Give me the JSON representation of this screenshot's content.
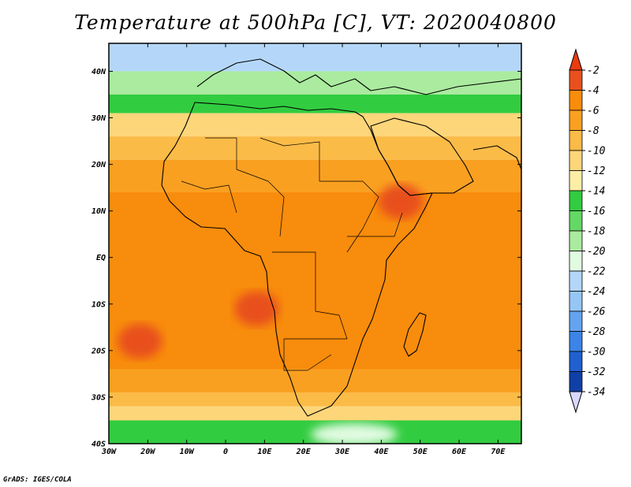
{
  "title": "Temperature at 500hPa [C], VT: 2020040800",
  "credit": "GrADS: IGES/COLA",
  "map": {
    "lon_range": [
      -30,
      76
    ],
    "lat_range": [
      -40,
      46
    ],
    "lat_ticks": [
      {
        "value": 40,
        "label": "40N"
      },
      {
        "value": 30,
        "label": "30N"
      },
      {
        "value": 20,
        "label": "20N"
      },
      {
        "value": 10,
        "label": "10N"
      },
      {
        "value": 0,
        "label": "EQ"
      },
      {
        "value": -10,
        "label": "10S"
      },
      {
        "value": -20,
        "label": "20S"
      },
      {
        "value": -30,
        "label": "30S"
      },
      {
        "value": -40,
        "label": "40S"
      }
    ],
    "lon_ticks": [
      {
        "value": -30,
        "label": "30W"
      },
      {
        "value": -20,
        "label": "20W"
      },
      {
        "value": -10,
        "label": "10W"
      },
      {
        "value": 0,
        "label": "0"
      },
      {
        "value": 10,
        "label": "10E"
      },
      {
        "value": 20,
        "label": "20E"
      },
      {
        "value": 30,
        "label": "30E"
      },
      {
        "value": 40,
        "label": "40E"
      },
      {
        "value": 50,
        "label": "50E"
      },
      {
        "value": 60,
        "label": "60E"
      },
      {
        "value": 70,
        "label": "70E"
      }
    ],
    "field_bands": [
      {
        "lat_start": 46,
        "lat_end": 40,
        "value": -22
      },
      {
        "lat_start": 40,
        "lat_end": 35,
        "value": -18
      },
      {
        "lat_start": 35,
        "lat_end": 31,
        "value": -15
      },
      {
        "lat_start": 31,
        "lat_end": 26,
        "value": -11
      },
      {
        "lat_start": 26,
        "lat_end": 21,
        "value": -9
      },
      {
        "lat_start": 21,
        "lat_end": 14,
        "value": -7
      },
      {
        "lat_start": 14,
        "lat_end": -24,
        "value": -5
      },
      {
        "lat_start": -24,
        "lat_end": -29,
        "value": -7
      },
      {
        "lat_start": -29,
        "lat_end": -32,
        "value": -9
      },
      {
        "lat_start": -32,
        "lat_end": -35,
        "value": -11
      },
      {
        "lat_start": -35,
        "lat_end": -40,
        "value": -14
      }
    ],
    "warm_patches": [
      {
        "lon": 8,
        "lat": -11,
        "value": -3
      },
      {
        "lon": -22,
        "lat": -18,
        "value": -3
      },
      {
        "lon": 45,
        "lat": 12,
        "value": -3
      }
    ],
    "cold_patch": {
      "lon": 33,
      "lat": -38,
      "value": -20
    }
  },
  "colorbar": {
    "levels": [
      {
        "label": "-2",
        "color": "#e8501e"
      },
      {
        "label": "-4",
        "color": "#f88c0c"
      },
      {
        "label": "-6",
        "color": "#faa021"
      },
      {
        "label": "-8",
        "color": "#fbbb47"
      },
      {
        "label": "-10",
        "color": "#fdd67a"
      },
      {
        "label": "-12",
        "color": "#fdeea6"
      },
      {
        "label": "-14",
        "color": "#32cc40"
      },
      {
        "label": "-16",
        "color": "#64d864"
      },
      {
        "label": "-18",
        "color": "#aaeb9f"
      },
      {
        "label": "-20",
        "color": "#e1fbe1"
      },
      {
        "label": "-22",
        "color": "#b4d7f9"
      },
      {
        "label": "-24",
        "color": "#96c6f5"
      },
      {
        "label": "-26",
        "color": "#64a3f0"
      },
      {
        "label": "-28",
        "color": "#3c84e6"
      },
      {
        "label": "-30",
        "color": "#2060d0"
      },
      {
        "label": "-32",
        "color": "#1040a6"
      },
      {
        "label": "-34",
        "color": "#0a1e78"
      }
    ],
    "top_color": "#e83c0e",
    "bottom_color": "#d8d8fc"
  }
}
